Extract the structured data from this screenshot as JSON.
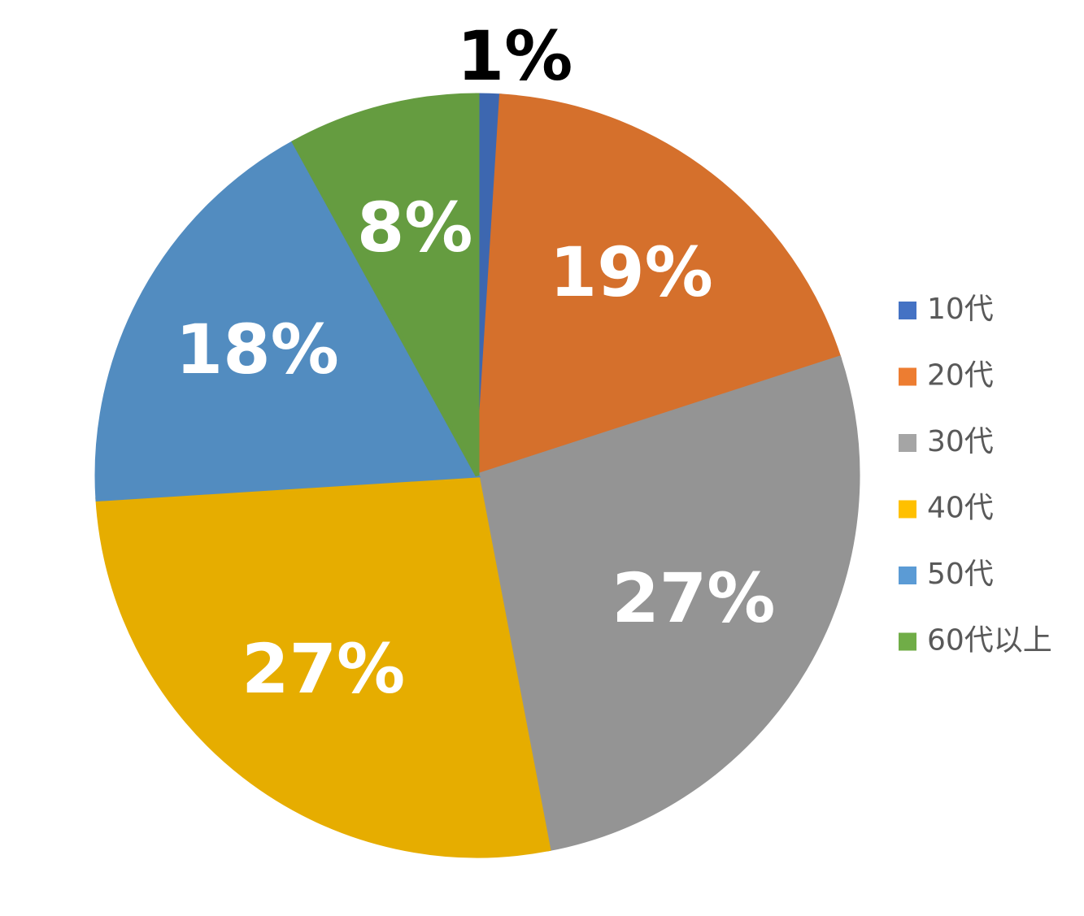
{
  "chart_data": {
    "type": "pie",
    "categories": [
      "10代",
      "20代",
      "30代",
      "40代",
      "50代",
      "60代以上"
    ],
    "values": [
      1,
      19,
      27,
      27,
      18,
      8
    ],
    "value_labels": [
      "1%",
      "19%",
      "27%",
      "27%",
      "18%",
      "8%"
    ],
    "colors": [
      "#4472c4",
      "#ed7d31",
      "#a5a5a5",
      "#ffc000",
      "#5b9bd5",
      "#70ad47"
    ],
    "legend": "right"
  }
}
